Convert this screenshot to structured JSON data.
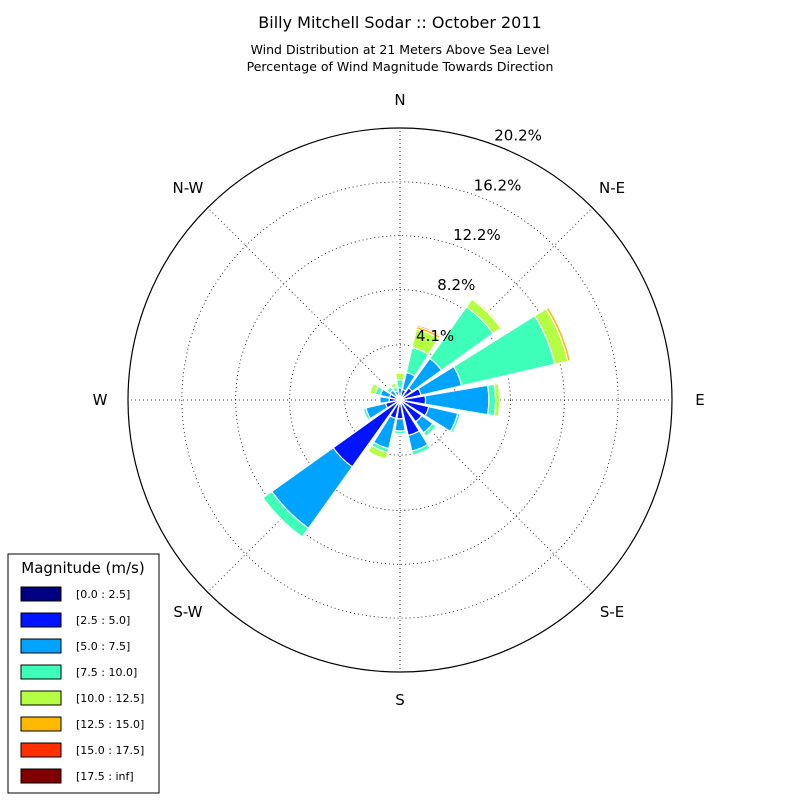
{
  "chart_data": {
    "type": "windrose",
    "title": "Billy Mitchell Sodar :: October 2011",
    "subtitle_lines": [
      "Wind Distribution at 21 Meters Above Sea Level",
      "Percentage of Wind Magnitude Towards Direction"
    ],
    "radial_ticks": [
      "4.1%",
      "8.2%",
      "12.2%",
      "16.2%",
      "20.2%"
    ],
    "radial_tick_values": [
      4.1,
      8.2,
      12.2,
      16.2,
      20.2
    ],
    "r_max": 20.2,
    "direction_labels": [
      "N",
      "N-E",
      "E",
      "S-E",
      "S",
      "S-W",
      "W",
      "N-W"
    ],
    "legend": {
      "title": "Magnitude (m/s)",
      "placement": "bottom-left",
      "entries": [
        {
          "label": "[0.0 : 2.5]",
          "color": "#000080"
        },
        {
          "label": "[2.5 : 5.0]",
          "color": "#0014ff"
        },
        {
          "label": "[5.0 : 7.5]",
          "color": "#00a4ff"
        },
        {
          "label": "[7.5 : 10.0]",
          "color": "#3dffba"
        },
        {
          "label": "[10.0 : 12.5]",
          "color": "#b4ff43"
        },
        {
          "label": "[12.5 : 15.0]",
          "color": "#ffb900"
        },
        {
          "label": "[15.0 : 17.5]",
          "color": "#ff3000"
        },
        {
          "label": "[17.5 : inf]",
          "color": "#800000"
        }
      ]
    },
    "sectors_deg": [
      0,
      22.5,
      45,
      67.5,
      90,
      112.5,
      135,
      157.5,
      180,
      202.5,
      225,
      247.5,
      270,
      292.5,
      315,
      337.5
    ],
    "bins_cumulative_percent": [
      [
        0.0,
        0.3,
        0.9,
        1.5,
        2.0,
        2.1,
        2.1,
        2.1
      ],
      [
        0.0,
        0.8,
        2.1,
        4.0,
        5.4,
        5.6,
        5.7,
        5.7
      ],
      [
        0.0,
        1.1,
        3.8,
        8.5,
        9.2,
        9.3,
        9.3,
        9.3
      ],
      [
        0.0,
        1.6,
        4.7,
        11.8,
        12.8,
        13.0,
        13.0,
        13.0
      ],
      [
        0.0,
        1.9,
        6.6,
        7.1,
        7.4,
        7.4,
        7.4,
        7.4
      ],
      [
        0.0,
        2.2,
        4.4,
        4.6,
        4.6,
        4.6,
        4.6,
        4.6
      ],
      [
        0.0,
        2.0,
        3.0,
        3.3,
        3.3,
        3.3,
        3.3,
        3.3
      ],
      [
        0.0,
        2.7,
        3.9,
        4.2,
        4.2,
        4.2,
        4.2,
        4.2
      ],
      [
        0.0,
        1.4,
        2.3,
        2.5,
        2.5,
        2.5,
        2.5,
        2.5
      ],
      [
        0.0,
        1.4,
        3.7,
        4.0,
        4.5,
        4.5,
        4.5,
        4.5
      ],
      [
        0.0,
        6.1,
        11.7,
        12.5,
        12.5,
        12.5,
        12.5,
        12.5
      ],
      [
        0.0,
        1.1,
        2.6,
        2.8,
        2.8,
        2.8,
        2.8,
        2.8
      ],
      [
        0.0,
        0.8,
        1.5,
        1.6,
        1.6,
        1.6,
        1.6,
        1.6
      ],
      [
        0.0,
        0.8,
        1.5,
        1.9,
        2.3,
        2.3,
        2.3,
        2.3
      ],
      [
        0.0,
        0.4,
        0.9,
        1.2,
        1.3,
        1.3,
        1.3,
        1.3
      ],
      [
        0.0,
        0.4,
        0.7,
        1.0,
        1.3,
        1.3,
        1.3,
        1.3
      ]
    ]
  }
}
